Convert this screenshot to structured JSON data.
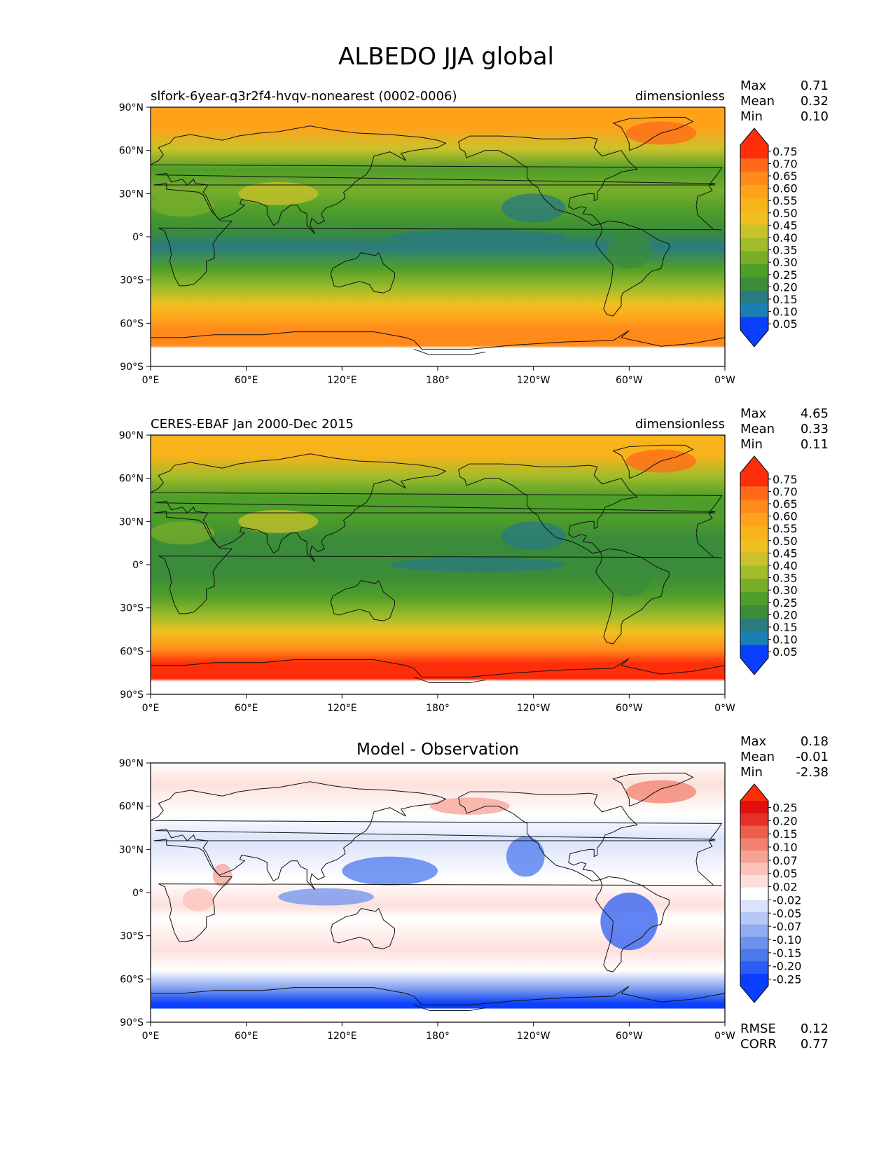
{
  "title": "ALBEDO JJA global",
  "colors": {
    "absolute": [
      "#0a3fff",
      "#1a80b3",
      "#2a7a82",
      "#3a8c3a",
      "#4e9e2a",
      "#78ae2a",
      "#a0bc2a",
      "#c9c22a",
      "#f0c020",
      "#f7b31a",
      "#ffa21a",
      "#ff8a1a",
      "#ff6a1a",
      "#ff2e0a"
    ],
    "absolute_under": "#0a3fff",
    "absolute_over": "#ff2e0a",
    "diff": [
      "#0a3fff",
      "#2c5cf2",
      "#4c78ee",
      "#6d92ee",
      "#92acf2",
      "#b8c8f6",
      "#dbe3fb",
      "#ffffff",
      "#fde0dc",
      "#fbc3ba",
      "#f7a294",
      "#f2806e",
      "#ec5e4b",
      "#e63226",
      "#e10f0f"
    ],
    "diff_under": "#0a3fff",
    "diff_over": "#ff2e0a"
  },
  "chart_data": [
    {
      "type": "heatmap",
      "panel": "model",
      "left_title": "slfork-6year-q3r2f4-hvqv-nonearest (0002-0006)",
      "right_title": "dimensionless",
      "center_title": "",
      "stats": {
        "max_label": "Max",
        "max": "0.71",
        "mean_label": "Mean",
        "mean": "0.32",
        "min_label": "Min",
        "min": "0.10"
      },
      "colorbar_levels": [
        "0.05",
        "0.10",
        "0.15",
        "0.20",
        "0.25",
        "0.30",
        "0.35",
        "0.40",
        "0.45",
        "0.50",
        "0.55",
        "0.60",
        "0.65",
        "0.70",
        "0.75"
      ],
      "colorbar_extend": "both",
      "xticks": [
        "0°E",
        "60°E",
        "120°E",
        "180°",
        "120°W",
        "60°W",
        "0°W"
      ],
      "yticks": [
        "90°N",
        "60°N",
        "30°N",
        "0°",
        "30°S",
        "60°S",
        "90°S"
      ],
      "xlim": [
        0,
        360
      ],
      "ylim": [
        -90,
        90
      ]
    },
    {
      "type": "heatmap",
      "panel": "observation",
      "left_title": "CERES-EBAF Jan 2000-Dec 2015",
      "right_title": "dimensionless",
      "center_title": "",
      "stats": {
        "max_label": "Max",
        "max": "4.65",
        "mean_label": "Mean",
        "mean": "0.33",
        "min_label": "Min",
        "min": "0.11"
      },
      "colorbar_levels": [
        "0.05",
        "0.10",
        "0.15",
        "0.20",
        "0.25",
        "0.30",
        "0.35",
        "0.40",
        "0.45",
        "0.50",
        "0.55",
        "0.60",
        "0.65",
        "0.70",
        "0.75"
      ],
      "colorbar_extend": "both",
      "xticks": [
        "0°E",
        "60°E",
        "120°E",
        "180°",
        "120°W",
        "60°W",
        "0°W"
      ],
      "yticks": [
        "90°N",
        "60°N",
        "30°N",
        "0°",
        "30°S",
        "60°S",
        "90°S"
      ],
      "xlim": [
        0,
        360
      ],
      "ylim": [
        -90,
        90
      ]
    },
    {
      "type": "heatmap",
      "panel": "difference",
      "left_title": "",
      "right_title": "",
      "center_title": "Model - Observation",
      "stats": {
        "max_label": "Max",
        "max": "0.18",
        "mean_label": "Mean",
        "mean": "-0.01",
        "min_label": "Min",
        "min": "-2.38"
      },
      "extra_stats": {
        "rmse_label": "RMSE",
        "rmse": "0.12",
        "corr_label": "CORR",
        "corr": "0.77"
      },
      "colorbar_levels": [
        "-0.25",
        "-0.20",
        "-0.15",
        "-0.10",
        "-0.07",
        "-0.05",
        "-0.02",
        "0.02",
        "0.05",
        "0.07",
        "0.10",
        "0.15",
        "0.20",
        "0.25"
      ],
      "colorbar_extend": "both",
      "xticks": [
        "0°E",
        "60°E",
        "120°E",
        "180°",
        "120°W",
        "60°W",
        "0°W"
      ],
      "yticks": [
        "90°N",
        "60°N",
        "30°N",
        "0°",
        "30°S",
        "60°S",
        "90°S"
      ],
      "xlim": [
        0,
        360
      ],
      "ylim": [
        -90,
        90
      ]
    }
  ]
}
